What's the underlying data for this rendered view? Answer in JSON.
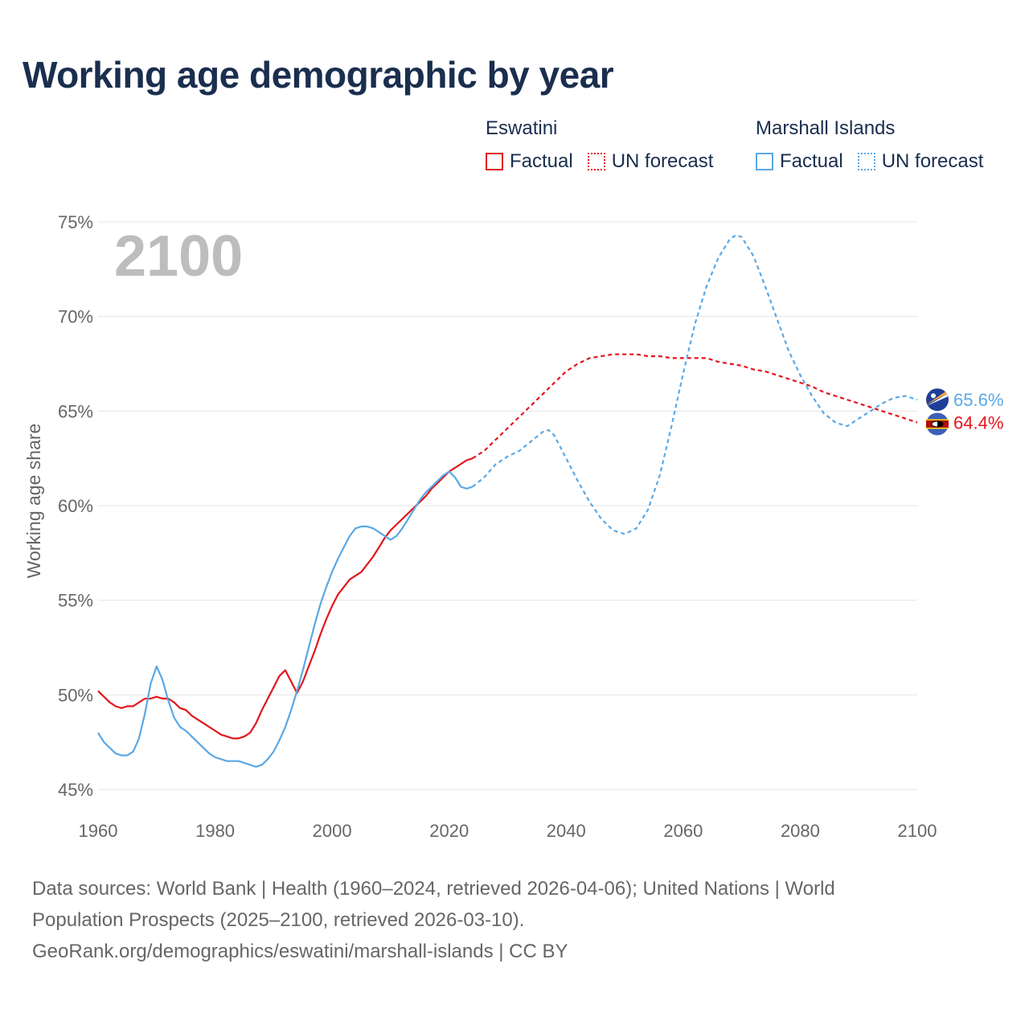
{
  "title": "Working age demographic by year",
  "year_watermark": "2100",
  "legend": [
    {
      "country": "Eswatini",
      "factual": "Factual",
      "forecast": "UN forecast",
      "color": "#e3161c"
    },
    {
      "country": "Marshall Islands",
      "factual": "Factual",
      "forecast": "UN forecast",
      "color": "#5aa8e6"
    }
  ],
  "footer": {
    "line1": "Data sources: World Bank | Health (1960–2024, retrieved 2026-04-06); United Nations | World",
    "line2": "Population Prospects (2025–2100, retrieved 2026-03-10).",
    "line3": "GeoRank.org/demographics/eswatini/marshall-islands | CC BY"
  },
  "chart_data": {
    "type": "line",
    "title": "Working age demographic by year",
    "xlabel": "",
    "ylabel": "Working age share",
    "xlim": [
      1960,
      2100
    ],
    "ylim": [
      45,
      75
    ],
    "x_ticks": [
      1960,
      1980,
      2000,
      2020,
      2040,
      2060,
      2080,
      2100
    ],
    "y_ticks": [
      45,
      50,
      55,
      60,
      65,
      70,
      75
    ],
    "y_tick_labels": [
      "45%",
      "50%",
      "55%",
      "60%",
      "65%",
      "70%",
      "75%"
    ],
    "grid": true,
    "legend_position": "top-right",
    "series": [
      {
        "name": "Eswatini",
        "color": "#e3161c",
        "end_label": "64.4%",
        "factual": [
          [
            1960,
            50.2
          ],
          [
            1961,
            49.9
          ],
          [
            1962,
            49.6
          ],
          [
            1963,
            49.4
          ],
          [
            1964,
            49.3
          ],
          [
            1965,
            49.4
          ],
          [
            1966,
            49.4
          ],
          [
            1967,
            49.6
          ],
          [
            1968,
            49.8
          ],
          [
            1969,
            49.8
          ],
          [
            1970,
            49.9
          ],
          [
            1971,
            49.8
          ],
          [
            1972,
            49.8
          ],
          [
            1973,
            49.6
          ],
          [
            1974,
            49.3
          ],
          [
            1975,
            49.2
          ],
          [
            1976,
            48.9
          ],
          [
            1977,
            48.7
          ],
          [
            1978,
            48.5
          ],
          [
            1979,
            48.3
          ],
          [
            1980,
            48.1
          ],
          [
            1981,
            47.9
          ],
          [
            1982,
            47.8
          ],
          [
            1983,
            47.7
          ],
          [
            1984,
            47.7
          ],
          [
            1985,
            47.8
          ],
          [
            1986,
            48.0
          ],
          [
            1987,
            48.5
          ],
          [
            1988,
            49.2
          ],
          [
            1989,
            49.8
          ],
          [
            1990,
            50.4
          ],
          [
            1991,
            51.0
          ],
          [
            1992,
            51.3
          ],
          [
            1993,
            50.7
          ],
          [
            1994,
            50.1
          ],
          [
            1995,
            50.7
          ],
          [
            1996,
            51.5
          ],
          [
            1997,
            52.3
          ],
          [
            1998,
            53.2
          ],
          [
            1999,
            54.0
          ],
          [
            2000,
            54.7
          ],
          [
            2001,
            55.3
          ],
          [
            2002,
            55.7
          ],
          [
            2003,
            56.1
          ],
          [
            2004,
            56.3
          ],
          [
            2005,
            56.5
          ],
          [
            2006,
            56.9
          ],
          [
            2007,
            57.3
          ],
          [
            2008,
            57.8
          ],
          [
            2009,
            58.3
          ],
          [
            2010,
            58.7
          ],
          [
            2011,
            59.0
          ],
          [
            2012,
            59.3
          ],
          [
            2013,
            59.6
          ],
          [
            2014,
            59.9
          ],
          [
            2015,
            60.2
          ],
          [
            2016,
            60.5
          ],
          [
            2017,
            60.9
          ],
          [
            2018,
            61.2
          ],
          [
            2019,
            61.5
          ],
          [
            2020,
            61.8
          ],
          [
            2021,
            62.0
          ],
          [
            2022,
            62.2
          ],
          [
            2023,
            62.4
          ],
          [
            2024,
            62.5
          ]
        ],
        "forecast": [
          [
            2024,
            62.5
          ],
          [
            2026,
            62.9
          ],
          [
            2028,
            63.5
          ],
          [
            2030,
            64.1
          ],
          [
            2032,
            64.7
          ],
          [
            2034,
            65.3
          ],
          [
            2036,
            65.9
          ],
          [
            2038,
            66.5
          ],
          [
            2040,
            67.1
          ],
          [
            2042,
            67.5
          ],
          [
            2044,
            67.8
          ],
          [
            2046,
            67.9
          ],
          [
            2048,
            68.0
          ],
          [
            2050,
            68.0
          ],
          [
            2052,
            68.0
          ],
          [
            2054,
            67.9
          ],
          [
            2056,
            67.9
          ],
          [
            2058,
            67.8
          ],
          [
            2060,
            67.8
          ],
          [
            2062,
            67.8
          ],
          [
            2064,
            67.8
          ],
          [
            2066,
            67.6
          ],
          [
            2068,
            67.5
          ],
          [
            2070,
            67.4
          ],
          [
            2072,
            67.2
          ],
          [
            2074,
            67.1
          ],
          [
            2076,
            66.9
          ],
          [
            2078,
            66.7
          ],
          [
            2080,
            66.5
          ],
          [
            2082,
            66.3
          ],
          [
            2084,
            66.0
          ],
          [
            2086,
            65.8
          ],
          [
            2088,
            65.6
          ],
          [
            2090,
            65.4
          ],
          [
            2092,
            65.2
          ],
          [
            2094,
            65.0
          ],
          [
            2096,
            64.8
          ],
          [
            2098,
            64.6
          ],
          [
            2100,
            64.4
          ]
        ]
      },
      {
        "name": "Marshall Islands",
        "color": "#5aa8e6",
        "end_label": "65.6%",
        "factual": [
          [
            1960,
            48.0
          ],
          [
            1961,
            47.5
          ],
          [
            1962,
            47.2
          ],
          [
            1963,
            46.9
          ],
          [
            1964,
            46.8
          ],
          [
            1965,
            46.8
          ],
          [
            1966,
            47.0
          ],
          [
            1967,
            47.7
          ],
          [
            1968,
            49.0
          ],
          [
            1969,
            50.6
          ],
          [
            1970,
            51.5
          ],
          [
            1971,
            50.8
          ],
          [
            1972,
            49.7
          ],
          [
            1973,
            48.8
          ],
          [
            1974,
            48.3
          ],
          [
            1975,
            48.1
          ],
          [
            1976,
            47.8
          ],
          [
            1977,
            47.5
          ],
          [
            1978,
            47.2
          ],
          [
            1979,
            46.9
          ],
          [
            1980,
            46.7
          ],
          [
            1981,
            46.6
          ],
          [
            1982,
            46.5
          ],
          [
            1983,
            46.5
          ],
          [
            1984,
            46.5
          ],
          [
            1985,
            46.4
          ],
          [
            1986,
            46.3
          ],
          [
            1987,
            46.2
          ],
          [
            1988,
            46.3
          ],
          [
            1989,
            46.6
          ],
          [
            1990,
            47.0
          ],
          [
            1991,
            47.6
          ],
          [
            1992,
            48.3
          ],
          [
            1993,
            49.2
          ],
          [
            1994,
            50.2
          ],
          [
            1995,
            51.3
          ],
          [
            1996,
            52.5
          ],
          [
            1997,
            53.7
          ],
          [
            1998,
            54.8
          ],
          [
            1999,
            55.7
          ],
          [
            2000,
            56.5
          ],
          [
            2001,
            57.2
          ],
          [
            2002,
            57.8
          ],
          [
            2003,
            58.4
          ],
          [
            2004,
            58.8
          ],
          [
            2005,
            58.9
          ],
          [
            2006,
            58.9
          ],
          [
            2007,
            58.8
          ],
          [
            2008,
            58.6
          ],
          [
            2009,
            58.4
          ],
          [
            2010,
            58.2
          ],
          [
            2011,
            58.4
          ],
          [
            2012,
            58.8
          ],
          [
            2013,
            59.3
          ],
          [
            2014,
            59.8
          ],
          [
            2015,
            60.3
          ],
          [
            2016,
            60.7
          ],
          [
            2017,
            61.0
          ],
          [
            2018,
            61.3
          ],
          [
            2019,
            61.6
          ],
          [
            2020,
            61.8
          ],
          [
            2021,
            61.5
          ],
          [
            2022,
            61.0
          ],
          [
            2023,
            60.9
          ],
          [
            2024,
            61.0
          ]
        ],
        "forecast": [
          [
            2024,
            61.0
          ],
          [
            2026,
            61.5
          ],
          [
            2028,
            62.2
          ],
          [
            2030,
            62.6
          ],
          [
            2032,
            62.9
          ],
          [
            2034,
            63.4
          ],
          [
            2036,
            63.9
          ],
          [
            2037,
            64.0
          ],
          [
            2038,
            63.7
          ],
          [
            2040,
            62.5
          ],
          [
            2042,
            61.3
          ],
          [
            2044,
            60.2
          ],
          [
            2046,
            59.3
          ],
          [
            2048,
            58.7
          ],
          [
            2050,
            58.5
          ],
          [
            2052,
            58.8
          ],
          [
            2054,
            59.8
          ],
          [
            2056,
            61.6
          ],
          [
            2058,
            64.2
          ],
          [
            2060,
            67.0
          ],
          [
            2062,
            69.6
          ],
          [
            2064,
            71.6
          ],
          [
            2066,
            73.1
          ],
          [
            2068,
            74.1
          ],
          [
            2069,
            74.3
          ],
          [
            2070,
            74.2
          ],
          [
            2072,
            73.2
          ],
          [
            2074,
            71.6
          ],
          [
            2076,
            69.9
          ],
          [
            2078,
            68.2
          ],
          [
            2080,
            66.9
          ],
          [
            2082,
            65.8
          ],
          [
            2084,
            64.9
          ],
          [
            2086,
            64.4
          ],
          [
            2088,
            64.2
          ],
          [
            2090,
            64.6
          ],
          [
            2092,
            65.0
          ],
          [
            2094,
            65.4
          ],
          [
            2096,
            65.7
          ],
          [
            2098,
            65.8
          ],
          [
            2100,
            65.6
          ]
        ]
      }
    ]
  }
}
